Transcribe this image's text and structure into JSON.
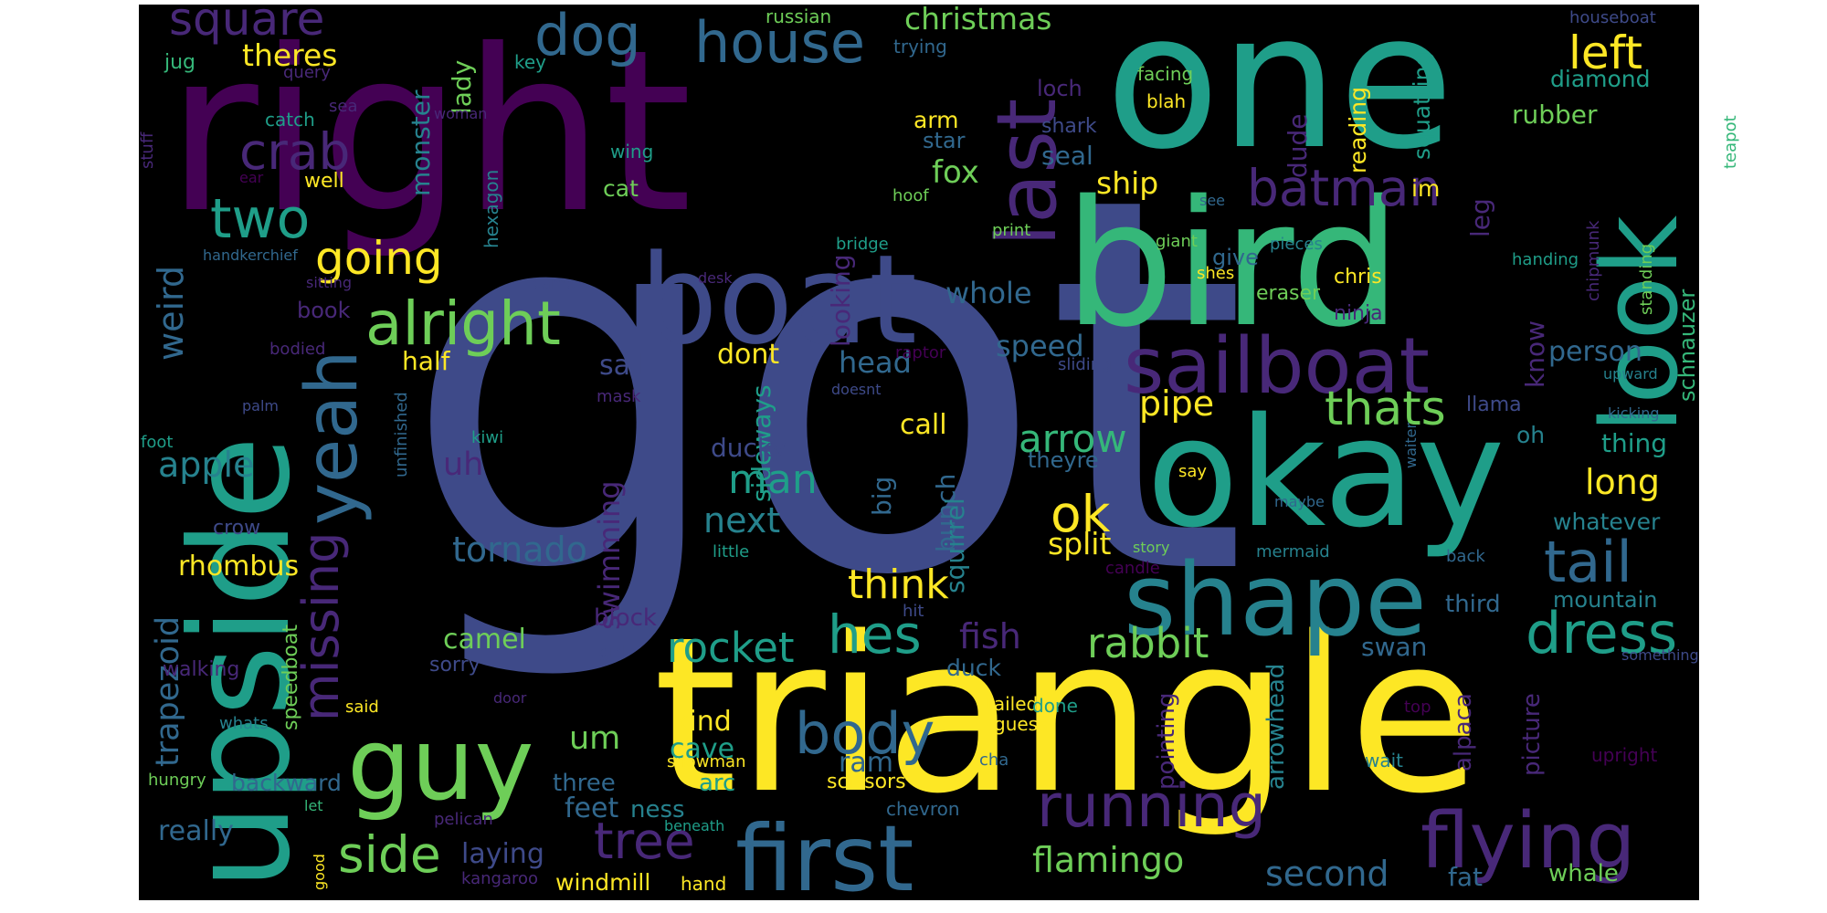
{
  "background": "#000000",
  "palette": {
    "purple": "#440154",
    "indigo": "#482878",
    "slate": "#3e4a89",
    "steel": "#31688e",
    "teal": "#26828e",
    "sea": "#1f9e89",
    "green": "#35b779",
    "lime": "#6ece58",
    "yellow": "#fde725"
  },
  "words": [
    {
      "text": "got",
      "color": "slate"
    },
    {
      "text": "right",
      "color": "purple"
    },
    {
      "text": "one",
      "color": "sea"
    },
    {
      "text": "triangle",
      "color": "yellow"
    },
    {
      "text": "upside",
      "color": "sea"
    },
    {
      "text": "bird",
      "color": "green"
    },
    {
      "text": "okay",
      "color": "sea"
    },
    {
      "text": "boat",
      "color": "slate"
    },
    {
      "text": "shape",
      "color": "teal"
    },
    {
      "text": "look",
      "color": "sea"
    },
    {
      "text": "last",
      "color": "indigo"
    },
    {
      "text": "guy",
      "color": "lime"
    },
    {
      "text": "first",
      "color": "steel"
    },
    {
      "text": "sailboat",
      "color": "indigo"
    },
    {
      "text": "flying",
      "color": "indigo"
    },
    {
      "text": "dog",
      "color": "steel"
    },
    {
      "text": "yeah",
      "color": "steel"
    },
    {
      "text": "alright",
      "color": "lime"
    },
    {
      "text": "missing",
      "color": "indigo"
    },
    {
      "text": "running",
      "color": "indigo"
    },
    {
      "text": "house",
      "color": "steel"
    },
    {
      "text": "dress",
      "color": "sea"
    },
    {
      "text": "tail",
      "color": "steel"
    },
    {
      "text": "body",
      "color": "steel"
    },
    {
      "text": "thats",
      "color": "lime"
    },
    {
      "text": "batman",
      "color": "indigo"
    },
    {
      "text": "two",
      "color": "sea"
    },
    {
      "text": "crab",
      "color": "indigo"
    },
    {
      "text": "square",
      "color": "indigo"
    },
    {
      "text": "going",
      "color": "yellow"
    },
    {
      "text": "tree",
      "color": "indigo"
    },
    {
      "text": "side",
      "color": "lime"
    },
    {
      "text": "left",
      "color": "yellow"
    },
    {
      "text": "hes",
      "color": "sea"
    },
    {
      "text": "ok",
      "color": "yellow"
    },
    {
      "text": "rocket",
      "color": "sea"
    },
    {
      "text": "rabbit",
      "color": "lime"
    },
    {
      "text": "arrow",
      "color": "green"
    },
    {
      "text": "tornado",
      "color": "steel"
    },
    {
      "text": "think",
      "color": "yellow"
    },
    {
      "text": "man",
      "color": "sea"
    },
    {
      "text": "flamingo",
      "color": "lime"
    },
    {
      "text": "second",
      "color": "steel"
    },
    {
      "text": "trapezoid",
      "color": "steel"
    },
    {
      "text": "pipe",
      "color": "yellow"
    },
    {
      "text": "apple",
      "color": "teal"
    },
    {
      "text": "fish",
      "color": "indigo"
    },
    {
      "text": "next",
      "color": "teal"
    },
    {
      "text": "long",
      "color": "yellow"
    },
    {
      "text": "weird",
      "color": "steel"
    },
    {
      "text": "christmas",
      "color": "lime"
    },
    {
      "text": "theres",
      "color": "yellow"
    },
    {
      "text": "ship",
      "color": "yellow"
    },
    {
      "text": "fox",
      "color": "lime"
    },
    {
      "text": "split",
      "color": "yellow"
    },
    {
      "text": "speed",
      "color": "steel"
    },
    {
      "text": "swimming",
      "color": "indigo"
    },
    {
      "text": "person",
      "color": "steel"
    },
    {
      "text": "whole",
      "color": "steel"
    },
    {
      "text": "head",
      "color": "steel"
    },
    {
      "text": "rhombus",
      "color": "yellow"
    },
    {
      "text": "really",
      "color": "steel"
    },
    {
      "text": "laying",
      "color": "slate"
    },
    {
      "text": "feet",
      "color": "steel"
    },
    {
      "text": "um",
      "color": "lime"
    },
    {
      "text": "uh",
      "color": "indigo"
    },
    {
      "text": "sideways",
      "color": "sea"
    },
    {
      "text": "looking",
      "color": "indigo"
    },
    {
      "text": "call",
      "color": "yellow"
    },
    {
      "text": "sail",
      "color": "slate"
    },
    {
      "text": "dont",
      "color": "yellow"
    },
    {
      "text": "half",
      "color": "yellow"
    },
    {
      "text": "camel",
      "color": "lime"
    },
    {
      "text": "cave",
      "color": "sea"
    },
    {
      "text": "ram",
      "color": "steel"
    },
    {
      "text": "kind",
      "color": "yellow"
    },
    {
      "text": "ducky",
      "color": "slate"
    },
    {
      "text": "bunch",
      "color": "steel"
    },
    {
      "text": "big",
      "color": "steel"
    },
    {
      "text": "squirrel",
      "color": "teal"
    },
    {
      "text": "monster",
      "color": "teal"
    },
    {
      "text": "lady",
      "color": "lime"
    },
    {
      "text": "dude",
      "color": "indigo"
    },
    {
      "text": "reading",
      "color": "yellow"
    },
    {
      "text": "squatting",
      "color": "sea"
    },
    {
      "text": "rubber",
      "color": "lime"
    },
    {
      "text": "diamond",
      "color": "sea"
    },
    {
      "text": "know",
      "color": "indigo"
    },
    {
      "text": "leg",
      "color": "indigo"
    },
    {
      "text": "schnauzer",
      "color": "green"
    },
    {
      "text": "thing",
      "color": "sea"
    },
    {
      "text": "whatever",
      "color": "teal"
    },
    {
      "text": "oh",
      "color": "teal"
    },
    {
      "text": "third",
      "color": "steel"
    },
    {
      "text": "mountain",
      "color": "teal"
    },
    {
      "text": "swan",
      "color": "steel"
    },
    {
      "text": "picture",
      "color": "indigo"
    },
    {
      "text": "alpaca",
      "color": "indigo"
    },
    {
      "text": "arrowhead",
      "color": "teal"
    },
    {
      "text": "pointing",
      "color": "indigo"
    },
    {
      "text": "fat",
      "color": "steel"
    },
    {
      "text": "whale",
      "color": "lime"
    },
    {
      "text": "windmill",
      "color": "yellow"
    },
    {
      "text": "ness",
      "color": "teal"
    },
    {
      "text": "arc",
      "color": "sea"
    },
    {
      "text": "three",
      "color": "steel"
    },
    {
      "text": "backward",
      "color": "steel"
    },
    {
      "text": "duck",
      "color": "steel"
    },
    {
      "text": "block",
      "color": "indigo"
    },
    {
      "text": "sorry",
      "color": "slate"
    },
    {
      "text": "speedboat",
      "color": "lime"
    },
    {
      "text": "walking",
      "color": "indigo"
    },
    {
      "text": "chris",
      "color": "yellow"
    },
    {
      "text": "give",
      "color": "steel"
    },
    {
      "text": "eraser",
      "color": "lime"
    },
    {
      "text": "ninja",
      "color": "indigo"
    },
    {
      "text": "llama",
      "color": "slate"
    },
    {
      "text": "im",
      "color": "yellow"
    },
    {
      "text": "seal",
      "color": "steel"
    },
    {
      "text": "loch",
      "color": "indigo"
    },
    {
      "text": "arm",
      "color": "yellow"
    },
    {
      "text": "star",
      "color": "steel"
    },
    {
      "text": "shark",
      "color": "slate"
    },
    {
      "text": "hexagon",
      "color": "teal"
    },
    {
      "text": "cat",
      "color": "lime"
    },
    {
      "text": "book",
      "color": "indigo"
    },
    {
      "text": "crow",
      "color": "slate"
    },
    {
      "text": "jug",
      "color": "green"
    },
    {
      "text": "catch",
      "color": "sea"
    },
    {
      "text": "well",
      "color": "yellow"
    },
    {
      "text": "stuff",
      "color": "indigo"
    },
    {
      "text": "key",
      "color": "sea"
    },
    {
      "text": "russian",
      "color": "lime"
    },
    {
      "text": "trying",
      "color": "steel"
    },
    {
      "text": "facing",
      "color": "lime"
    },
    {
      "text": "blah",
      "color": "yellow"
    },
    {
      "text": "houseboat",
      "color": "slate"
    },
    {
      "text": "teapot",
      "color": "green"
    },
    {
      "text": "query",
      "color": "indigo"
    },
    {
      "text": "sea",
      "color": "indigo"
    },
    {
      "text": "woman",
      "color": "indigo"
    },
    {
      "text": "wing",
      "color": "sea"
    },
    {
      "text": "ear",
      "color": "purple"
    },
    {
      "text": "hoof",
      "color": "lime"
    },
    {
      "text": "handkerchief",
      "color": "steel"
    },
    {
      "text": "sitting",
      "color": "indigo"
    },
    {
      "text": "came",
      "color": "slate"
    },
    {
      "text": "desk",
      "color": "indigo"
    },
    {
      "text": "bridge",
      "color": "sea"
    },
    {
      "text": "print",
      "color": "lime"
    },
    {
      "text": "see",
      "color": "steel"
    },
    {
      "text": "pieces",
      "color": "teal"
    },
    {
      "text": "giant",
      "color": "lime"
    },
    {
      "text": "shes",
      "color": "yellow"
    },
    {
      "text": "handing",
      "color": "sea"
    },
    {
      "text": "chipmunk",
      "color": "indigo"
    },
    {
      "text": "standing",
      "color": "lime"
    },
    {
      "text": "bodied",
      "color": "indigo"
    },
    {
      "text": "raptor",
      "color": "purple"
    },
    {
      "text": "sliding",
      "color": "slate"
    },
    {
      "text": "upward",
      "color": "teal"
    },
    {
      "text": "doesnt",
      "color": "slate"
    },
    {
      "text": "mask",
      "color": "indigo"
    },
    {
      "text": "palm",
      "color": "slate"
    },
    {
      "text": "kiwi",
      "color": "sea"
    },
    {
      "text": "unfinished",
      "color": "steel"
    },
    {
      "text": "kicking",
      "color": "steel"
    },
    {
      "text": "foot",
      "color": "sea"
    },
    {
      "text": "theyre",
      "color": "steel"
    },
    {
      "text": "waiter",
      "color": "steel"
    },
    {
      "text": "say",
      "color": "yellow"
    },
    {
      "text": "maybe",
      "color": "steel"
    },
    {
      "text": "little",
      "color": "sea"
    },
    {
      "text": "story",
      "color": "lime"
    },
    {
      "text": "mermaid",
      "color": "teal"
    },
    {
      "text": "back",
      "color": "steel"
    },
    {
      "text": "candle",
      "color": "purple"
    },
    {
      "text": "hit",
      "color": "slate"
    },
    {
      "text": "girl",
      "color": "slate"
    },
    {
      "text": "something",
      "color": "slate"
    },
    {
      "text": "whats",
      "color": "teal"
    },
    {
      "text": "door",
      "color": "indigo"
    },
    {
      "text": "said",
      "color": "yellow"
    },
    {
      "text": "hungry",
      "color": "lime"
    },
    {
      "text": "tailed",
      "color": "yellow"
    },
    {
      "text": "guess",
      "color": "yellow"
    },
    {
      "text": "done",
      "color": "sea"
    },
    {
      "text": "top",
      "color": "purple"
    },
    {
      "text": "snowman",
      "color": "yellow"
    },
    {
      "text": "scissors",
      "color": "yellow"
    },
    {
      "text": "cha",
      "color": "steel"
    },
    {
      "text": "wait",
      "color": "teal"
    },
    {
      "text": "upright",
      "color": "purple"
    },
    {
      "text": "let",
      "color": "green"
    },
    {
      "text": "pelican",
      "color": "indigo"
    },
    {
      "text": "chevron",
      "color": "steel"
    },
    {
      "text": "good",
      "color": "yellow"
    },
    {
      "text": "beneath",
      "color": "sea"
    },
    {
      "text": "kangaroo",
      "color": "indigo"
    },
    {
      "text": "hand",
      "color": "yellow"
    }
  ]
}
